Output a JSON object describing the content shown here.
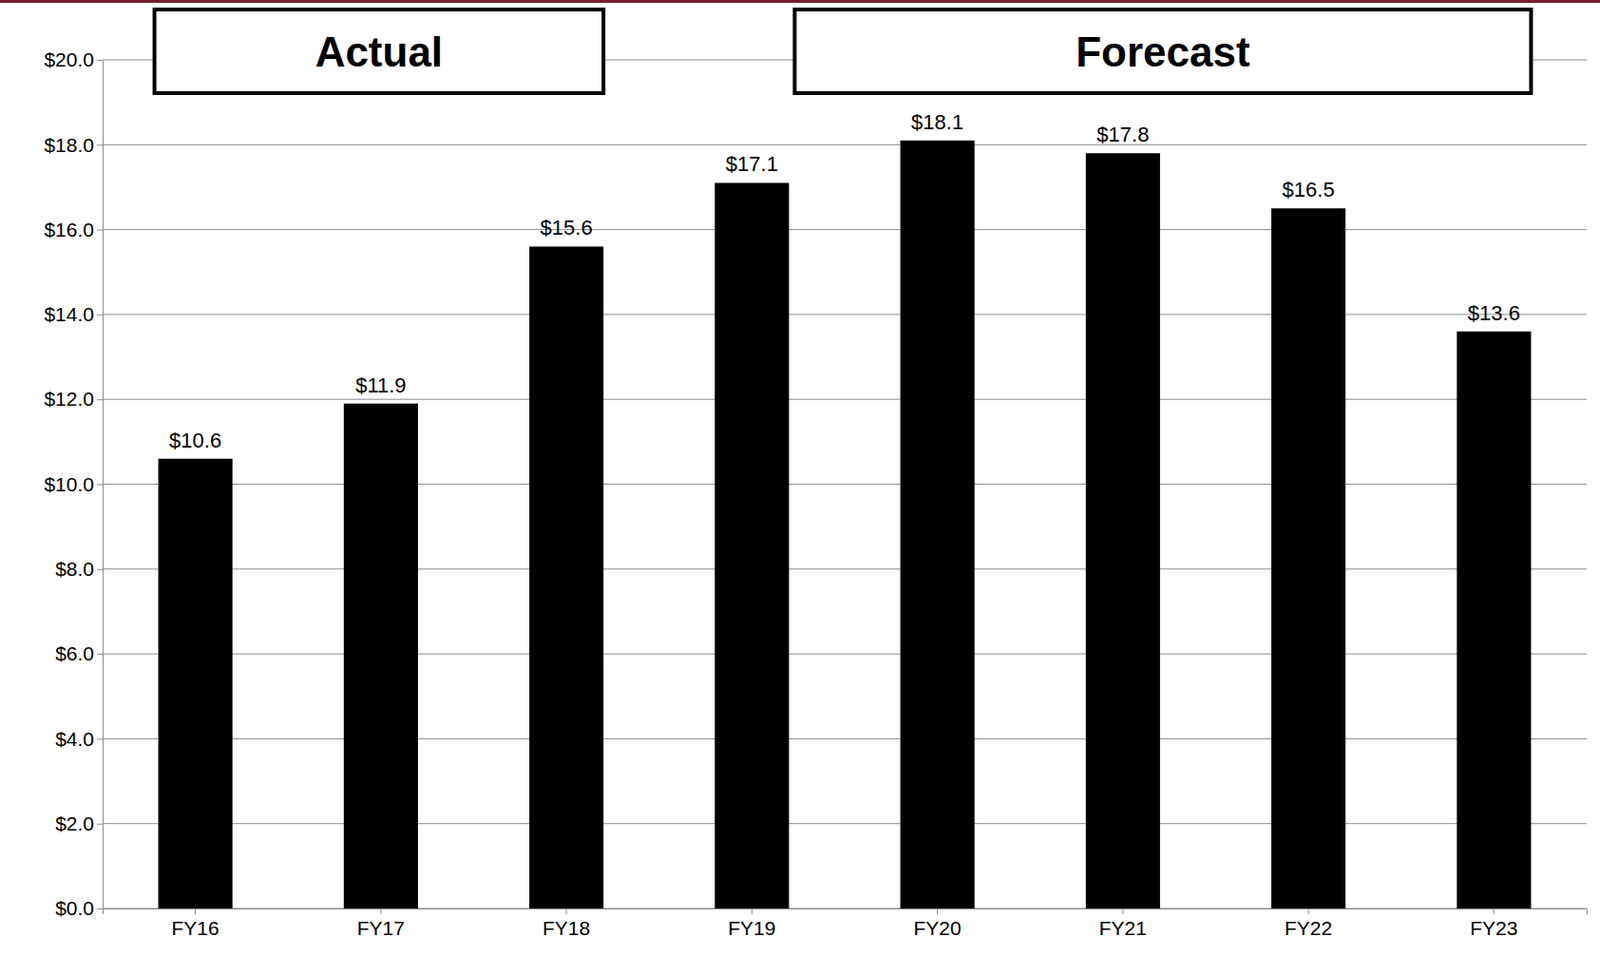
{
  "chart_data": {
    "type": "bar",
    "categories": [
      "FY16",
      "FY17",
      "FY18",
      "FY19",
      "FY20",
      "FY21",
      "FY22",
      "FY23"
    ],
    "values": [
      10.6,
      11.9,
      15.6,
      17.1,
      18.1,
      17.8,
      16.5,
      13.6
    ],
    "value_labels": [
      "$10.6",
      "$11.9",
      "$15.6",
      "$17.1",
      "$18.1",
      "$17.8",
      "$16.5",
      "$13.6"
    ],
    "color": "#000000",
    "ylim": [
      0,
      20
    ],
    "yticks": [
      {
        "value": 0,
        "label": "$0.0"
      },
      {
        "value": 2,
        "label": "$2.0"
      },
      {
        "value": 4,
        "label": "$4.0"
      },
      {
        "value": 6,
        "label": "$6.0"
      },
      {
        "value": 8,
        "label": "$8.0"
      },
      {
        "value": 10,
        "label": "$10.0"
      },
      {
        "value": 12,
        "label": "$12.0"
      },
      {
        "value": 14,
        "label": "$14.0"
      },
      {
        "value": 16,
        "label": "$16.0"
      },
      {
        "value": 18,
        "label": "$18.0"
      },
      {
        "value": 20,
        "label": "$20.0"
      }
    ],
    "grid": true,
    "data_labels": true,
    "annotations": [
      "Actual",
      "Forecast"
    ]
  }
}
